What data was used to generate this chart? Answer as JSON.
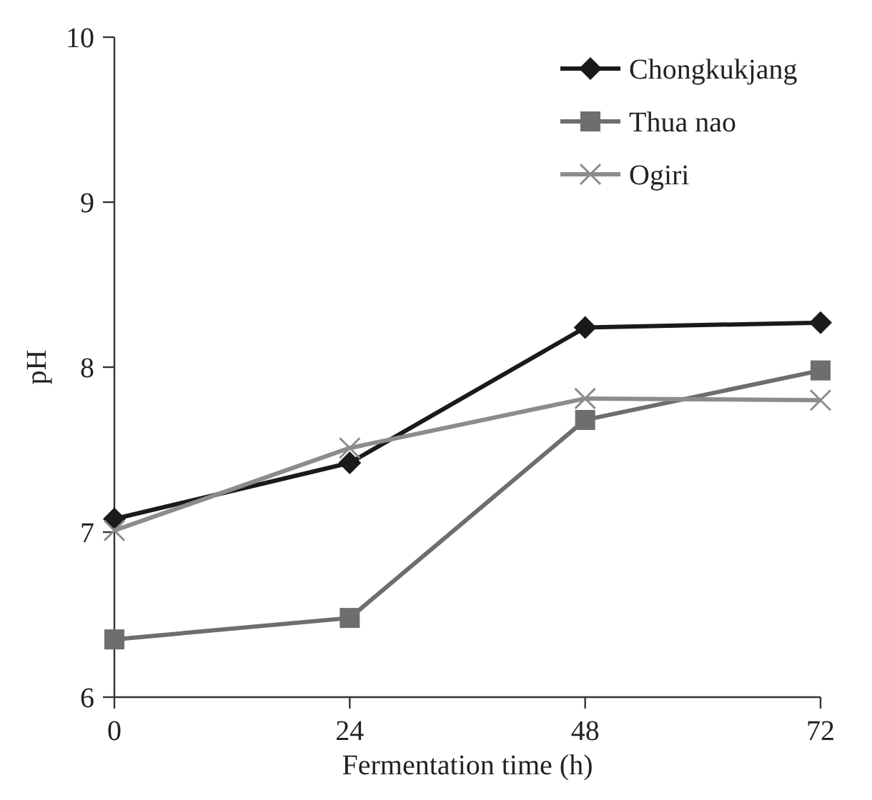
{
  "chart_data": {
    "type": "line",
    "xlabel": "Fermentation time (h)",
    "ylabel": "pH",
    "x": [
      0,
      24,
      48,
      72
    ],
    "xlim": [
      0,
      72
    ],
    "xticks": [
      0,
      24,
      48,
      72
    ],
    "ylim": [
      6,
      10
    ],
    "yticks": [
      6,
      7,
      8,
      9,
      10
    ],
    "legend": "top right",
    "grid": false,
    "series": [
      {
        "name": "Chongkukjang",
        "color": "#1a1a1a",
        "marker": "diamond",
        "values": [
          7.08,
          7.42,
          8.24,
          8.27
        ]
      },
      {
        "name": "Thua nao",
        "color": "#6e6e6e",
        "marker": "square",
        "values": [
          6.35,
          6.48,
          7.68,
          7.98
        ]
      },
      {
        "name": "Ogiri",
        "color": "#8c8c8c",
        "marker": "cross",
        "values": [
          7.01,
          7.51,
          7.81,
          7.8
        ]
      }
    ]
  }
}
